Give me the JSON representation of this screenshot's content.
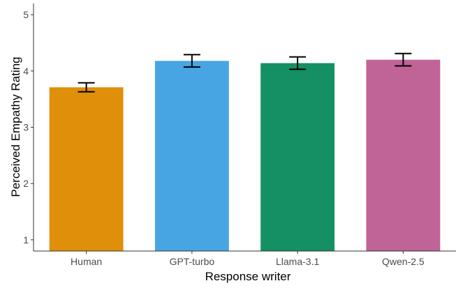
{
  "chart_data": {
    "type": "bar",
    "xlabel": "Response writer",
    "ylabel": "Perceived Empathy Rating",
    "ylim": [
      0.8,
      5.2
    ],
    "yticks": [
      1,
      2,
      3,
      4,
      5
    ],
    "grid": false,
    "categories": [
      "Human",
      "GPT-turbo",
      "Llama-3.1",
      "Qwen-2.5"
    ],
    "values": [
      3.71,
      4.18,
      4.14,
      4.2
    ],
    "error_low": [
      3.63,
      4.07,
      4.03,
      4.09
    ],
    "error_high": [
      3.79,
      4.29,
      4.25,
      4.31
    ],
    "colors": [
      "#E08F0B",
      "#48A5E4",
      "#159064",
      "#C06396"
    ],
    "baseline": 0.8
  }
}
